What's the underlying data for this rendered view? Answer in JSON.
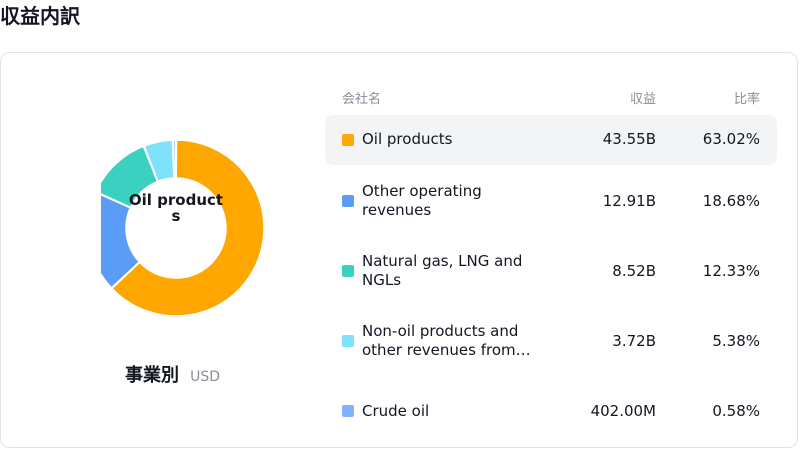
{
  "page": {
    "title": "収益内訳"
  },
  "donut": {
    "center_label": "Oil products",
    "caption_title": "事業別",
    "caption_unit": "USD"
  },
  "table": {
    "headers": {
      "name": "会社名",
      "revenue": "収益",
      "ratio": "比率"
    },
    "rows": [
      {
        "name": "Oil products",
        "revenue": "43.55B",
        "ratio": "63.02%",
        "color": "#ffa600"
      },
      {
        "name": "Other operating revenues",
        "revenue": "12.91B",
        "ratio": "18.68%",
        "color": "#5b9cf6"
      },
      {
        "name": "Natural gas, LNG and NGLs",
        "revenue": "8.52B",
        "ratio": "12.33%",
        "color": "#3bd1c0"
      },
      {
        "name": "Non-oil products and other revenues from…",
        "revenue": "3.72B",
        "ratio": "5.38%",
        "color": "#80e1fa"
      },
      {
        "name": "Crude oil",
        "revenue": "402.00M",
        "ratio": "0.58%",
        "color": "#82b1ff"
      }
    ]
  },
  "chart_data": {
    "type": "pie",
    "donut": true,
    "categories": [
      "Oil products",
      "Other operating revenues",
      "Natural gas, LNG and NGLs",
      "Non-oil products and other revenues from…",
      "Crude oil"
    ],
    "values": [
      63.02,
      18.68,
      12.33,
      5.38,
      0.58
    ],
    "colors": [
      "#ffa600",
      "#5b9cf6",
      "#3bd1c0",
      "#80e1fa",
      "#82b1ff"
    ],
    "title": "事業別",
    "unit": "USD"
  }
}
